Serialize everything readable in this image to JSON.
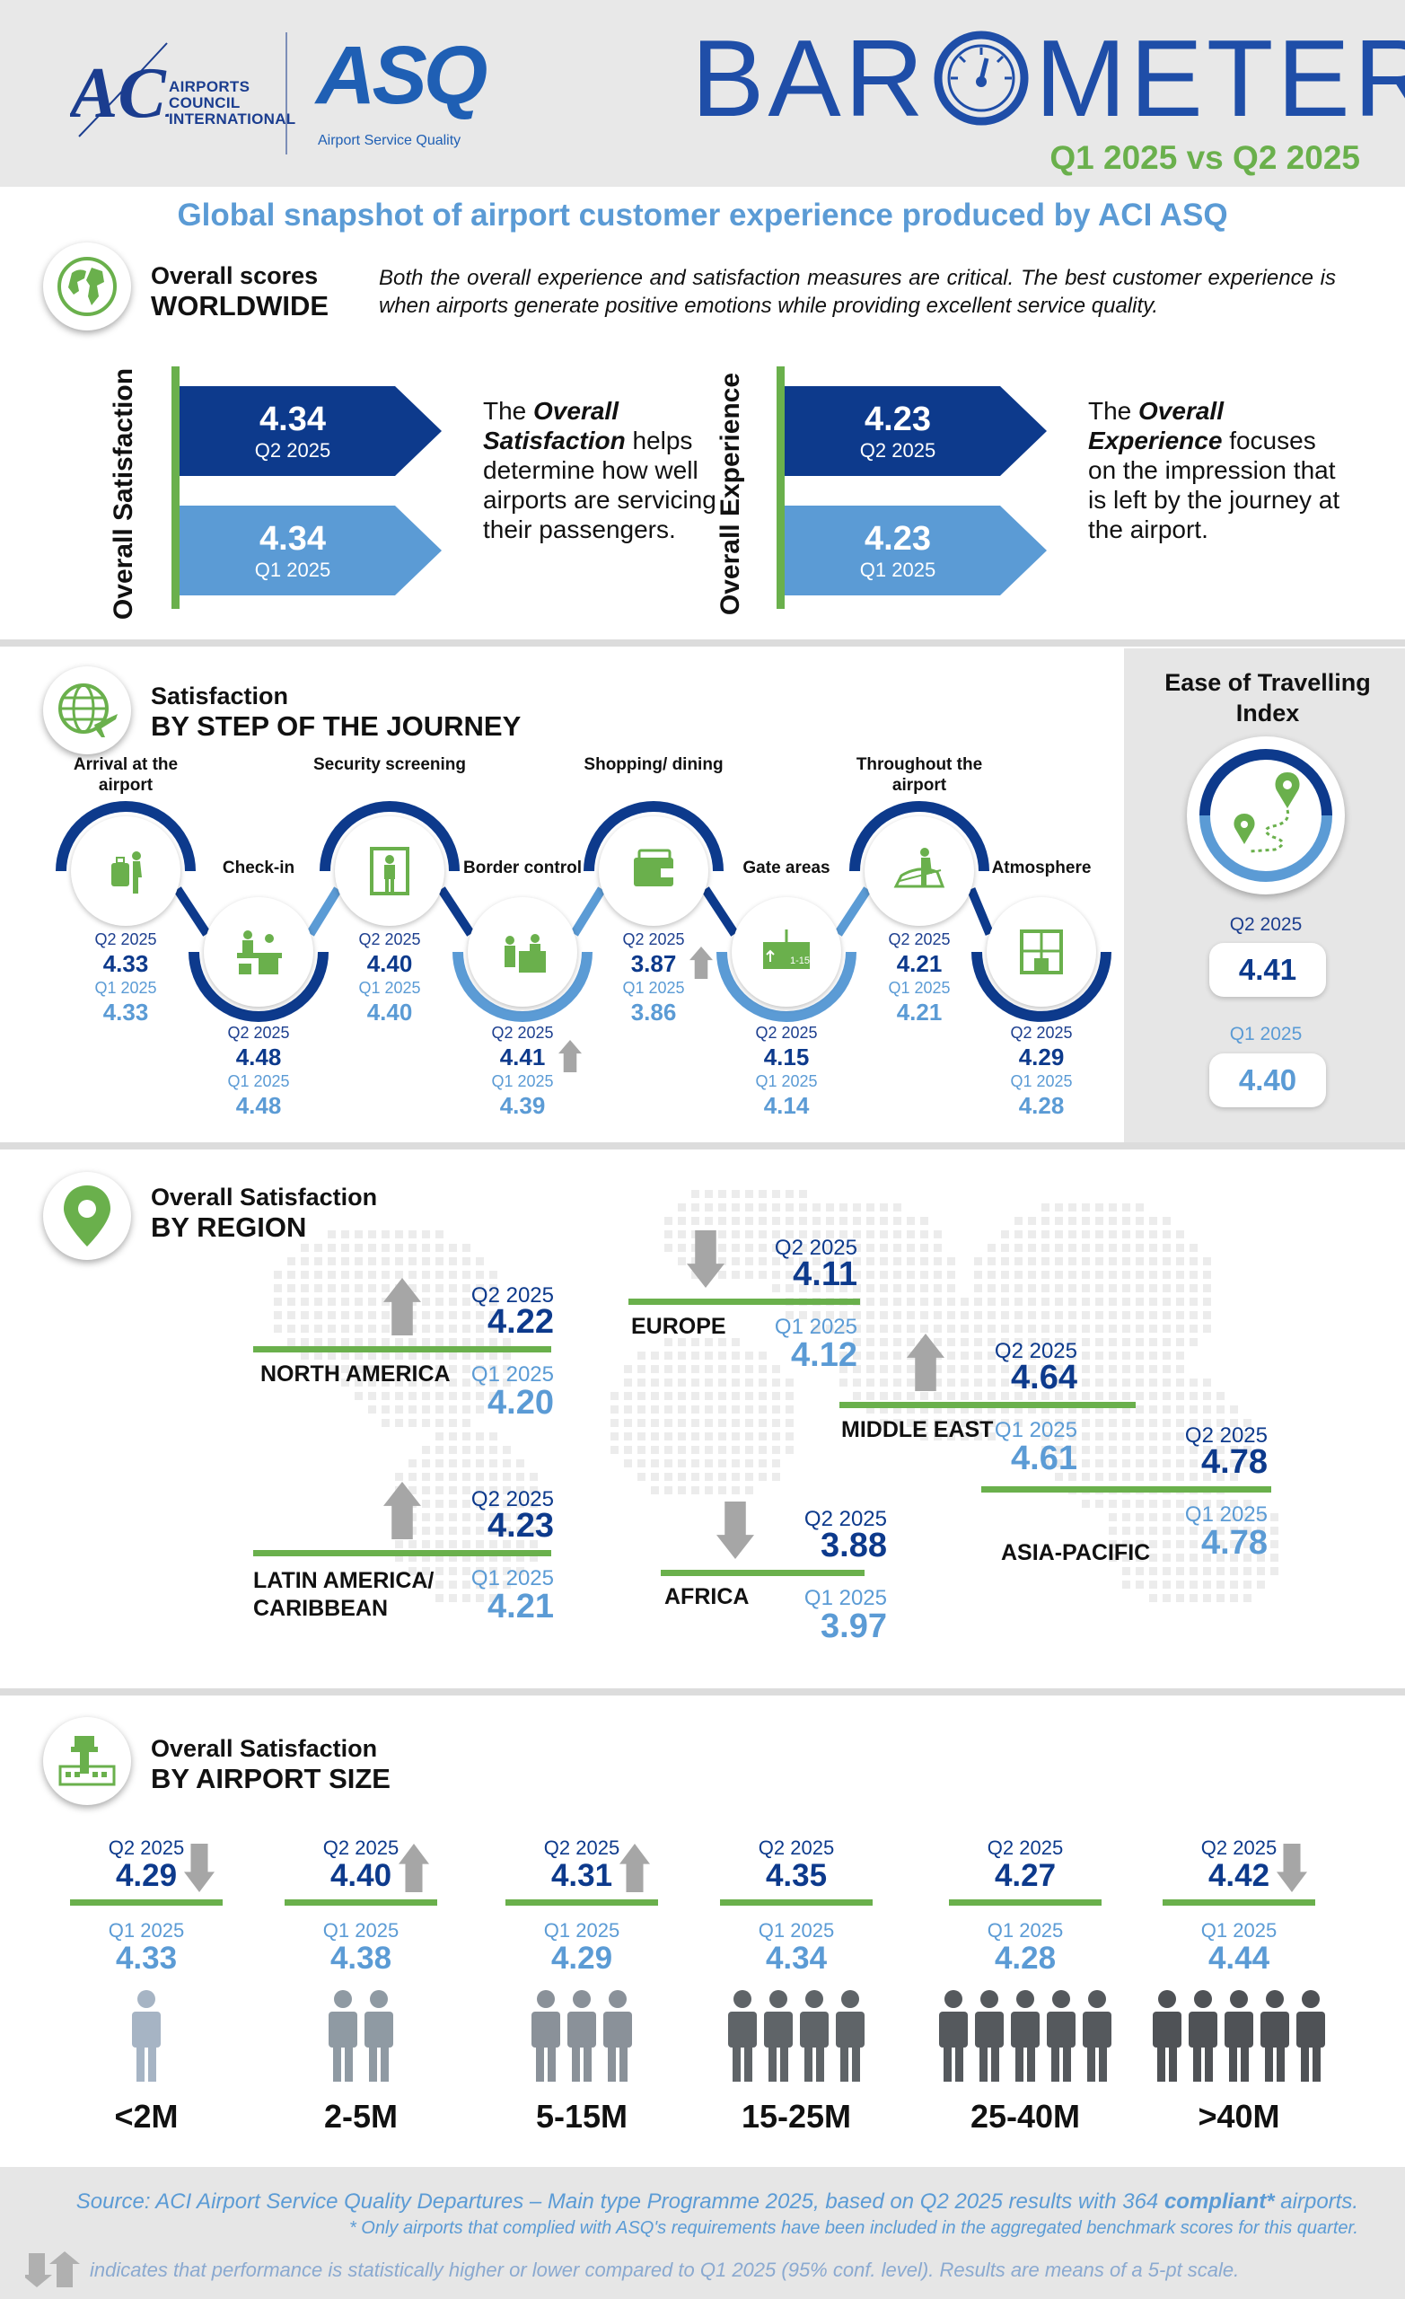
{
  "header": {
    "aci_logo_letters": "ACI",
    "aci_org_lines": [
      "AIRPORTS",
      "COUNCIL",
      "INTERNATIONAL"
    ],
    "asq_logo": "ASQ",
    "asq_subtitle": "Airport Service Quality",
    "title_left": "BAR",
    "title_right": "METER",
    "period": "Q1 2025 vs Q2 2025"
  },
  "headline": "Global snapshot of airport customer experience produced by ACI ASQ",
  "worldwide": {
    "heading1": "Overall scores",
    "heading2": "WORLDWIDE",
    "description": "Both the overall experience and satisfaction measures are critical. The best customer experience is when airports generate positive emotions while providing excellent service quality.",
    "satisfaction": {
      "label": "Overall Satisfaction",
      "q2_value": "4.34",
      "q2_label": "Q2 2025",
      "q1_value": "4.34",
      "q1_label": "Q1 2025",
      "desc_pre": "The ",
      "desc_em": "Overall Satisfaction",
      "desc_post": " helps determine how well airports are servicing their passengers."
    },
    "experience": {
      "label": "Overall Experience",
      "q2_value": "4.23",
      "q2_label": "Q2 2025",
      "q1_value": "4.23",
      "q1_label": "Q1 2025",
      "desc_pre": "The ",
      "desc_em": "Overall Experience",
      "desc_post": " focuses on the impression that is left by the journey at the airport."
    }
  },
  "journey": {
    "heading1": "Satisfaction",
    "heading2": "BY STEP OF THE JOURNEY",
    "q2_label": "Q2 2025",
    "q1_label": "Q1 2025",
    "steps": [
      {
        "name": "Arrival at the airport",
        "q2": "4.33",
        "q1": "4.33",
        "icon": "luggage-icon",
        "trend": "none"
      },
      {
        "name": "Check-in",
        "q2": "4.48",
        "q1": "4.48",
        "icon": "check-in-desk-icon",
        "trend": "none"
      },
      {
        "name": "Security screening",
        "q2": "4.40",
        "q1": "4.40",
        "icon": "security-gate-icon",
        "trend": "none"
      },
      {
        "name": "Border control",
        "q2": "4.41",
        "q1": "4.39",
        "icon": "passport-control-icon",
        "trend": "up"
      },
      {
        "name": "Shopping/ dining",
        "q2": "3.87",
        "q1": "3.86",
        "icon": "wallet-icon",
        "trend": "up"
      },
      {
        "name": "Gate areas",
        "q2": "4.15",
        "q1": "4.14",
        "icon": "gate-sign-icon",
        "trend": "none"
      },
      {
        "name": "Throughout the airport",
        "q2": "4.21",
        "q1": "4.21",
        "icon": "moving-walkway-icon",
        "trend": "none"
      },
      {
        "name": "Atmosphere",
        "q2": "4.29",
        "q1": "4.28",
        "icon": "window-icon",
        "trend": "none"
      }
    ]
  },
  "ease": {
    "title": "Ease of Travelling Index",
    "q2_label": "Q2 2025",
    "q2_value": "4.41",
    "q1_label": "Q1 2025",
    "q1_value": "4.40"
  },
  "region": {
    "heading1": "Overall Satisfaction",
    "heading2": "BY REGION",
    "q2_label": "Q2 2025",
    "q1_label": "Q1 2025",
    "regions": [
      {
        "name": "NORTH AMERICA",
        "q2": "4.22",
        "q1": "4.20",
        "trend": "up"
      },
      {
        "name": "LATIN AMERICA/ CARIBBEAN",
        "q2": "4.23",
        "q1": "4.21",
        "trend": "up"
      },
      {
        "name": "EUROPE",
        "q2": "4.11",
        "q1": "4.12",
        "trend": "down"
      },
      {
        "name": "AFRICA",
        "q2": "3.88",
        "q1": "3.97",
        "trend": "down"
      },
      {
        "name": "MIDDLE EAST",
        "q2": "4.64",
        "q1": "4.61",
        "trend": "up"
      },
      {
        "name": "ASIA-PACIFIC",
        "q2": "4.78",
        "q1": "4.78",
        "trend": "none"
      }
    ]
  },
  "size": {
    "heading1": "Overall Satisfaction",
    "heading2": "BY AIRPORT SIZE",
    "q2_label": "Q2 2025",
    "q1_label": "Q1 2025",
    "sizes": [
      {
        "name": "<2M",
        "q2": "4.29",
        "q1": "4.33",
        "trend": "down",
        "people": 1
      },
      {
        "name": "2-5M",
        "q2": "4.40",
        "q1": "4.38",
        "trend": "up",
        "people": 2
      },
      {
        "name": "5-15M",
        "q2": "4.31",
        "q1": "4.29",
        "trend": "up",
        "people": 3
      },
      {
        "name": "15-25M",
        "q2": "4.35",
        "q1": "4.34",
        "trend": "none",
        "people": 4
      },
      {
        "name": "25-40M",
        "q2": "4.27",
        "q1": "4.28",
        "trend": "none",
        "people": 5
      },
      {
        "name": ">40M",
        "q2": "4.42",
        "q1": "4.44",
        "trend": "down",
        "people": 5
      }
    ]
  },
  "footer": {
    "source_pre": "Source: ACI Airport Service Quality Departures – Main type Programme 2025, based on Q2 2025 results with 364 ",
    "source_em": "compliant*",
    "source_post": " airports.",
    "footnote": "* Only airports that complied with ASQ's requirements have been included in the aggregated benchmark scores for this quarter.",
    "legend": "indicates that performance is statistically higher or lower compared to Q1 2025 (95% conf. level). Results are means of a 5-pt scale."
  },
  "colors": {
    "navy": "#0d3a8c",
    "light_blue": "#5b9bd5",
    "green": "#6ab04c",
    "grey_arrow": "#a6a6a6",
    "background_grey": "#e6e6e6"
  }
}
